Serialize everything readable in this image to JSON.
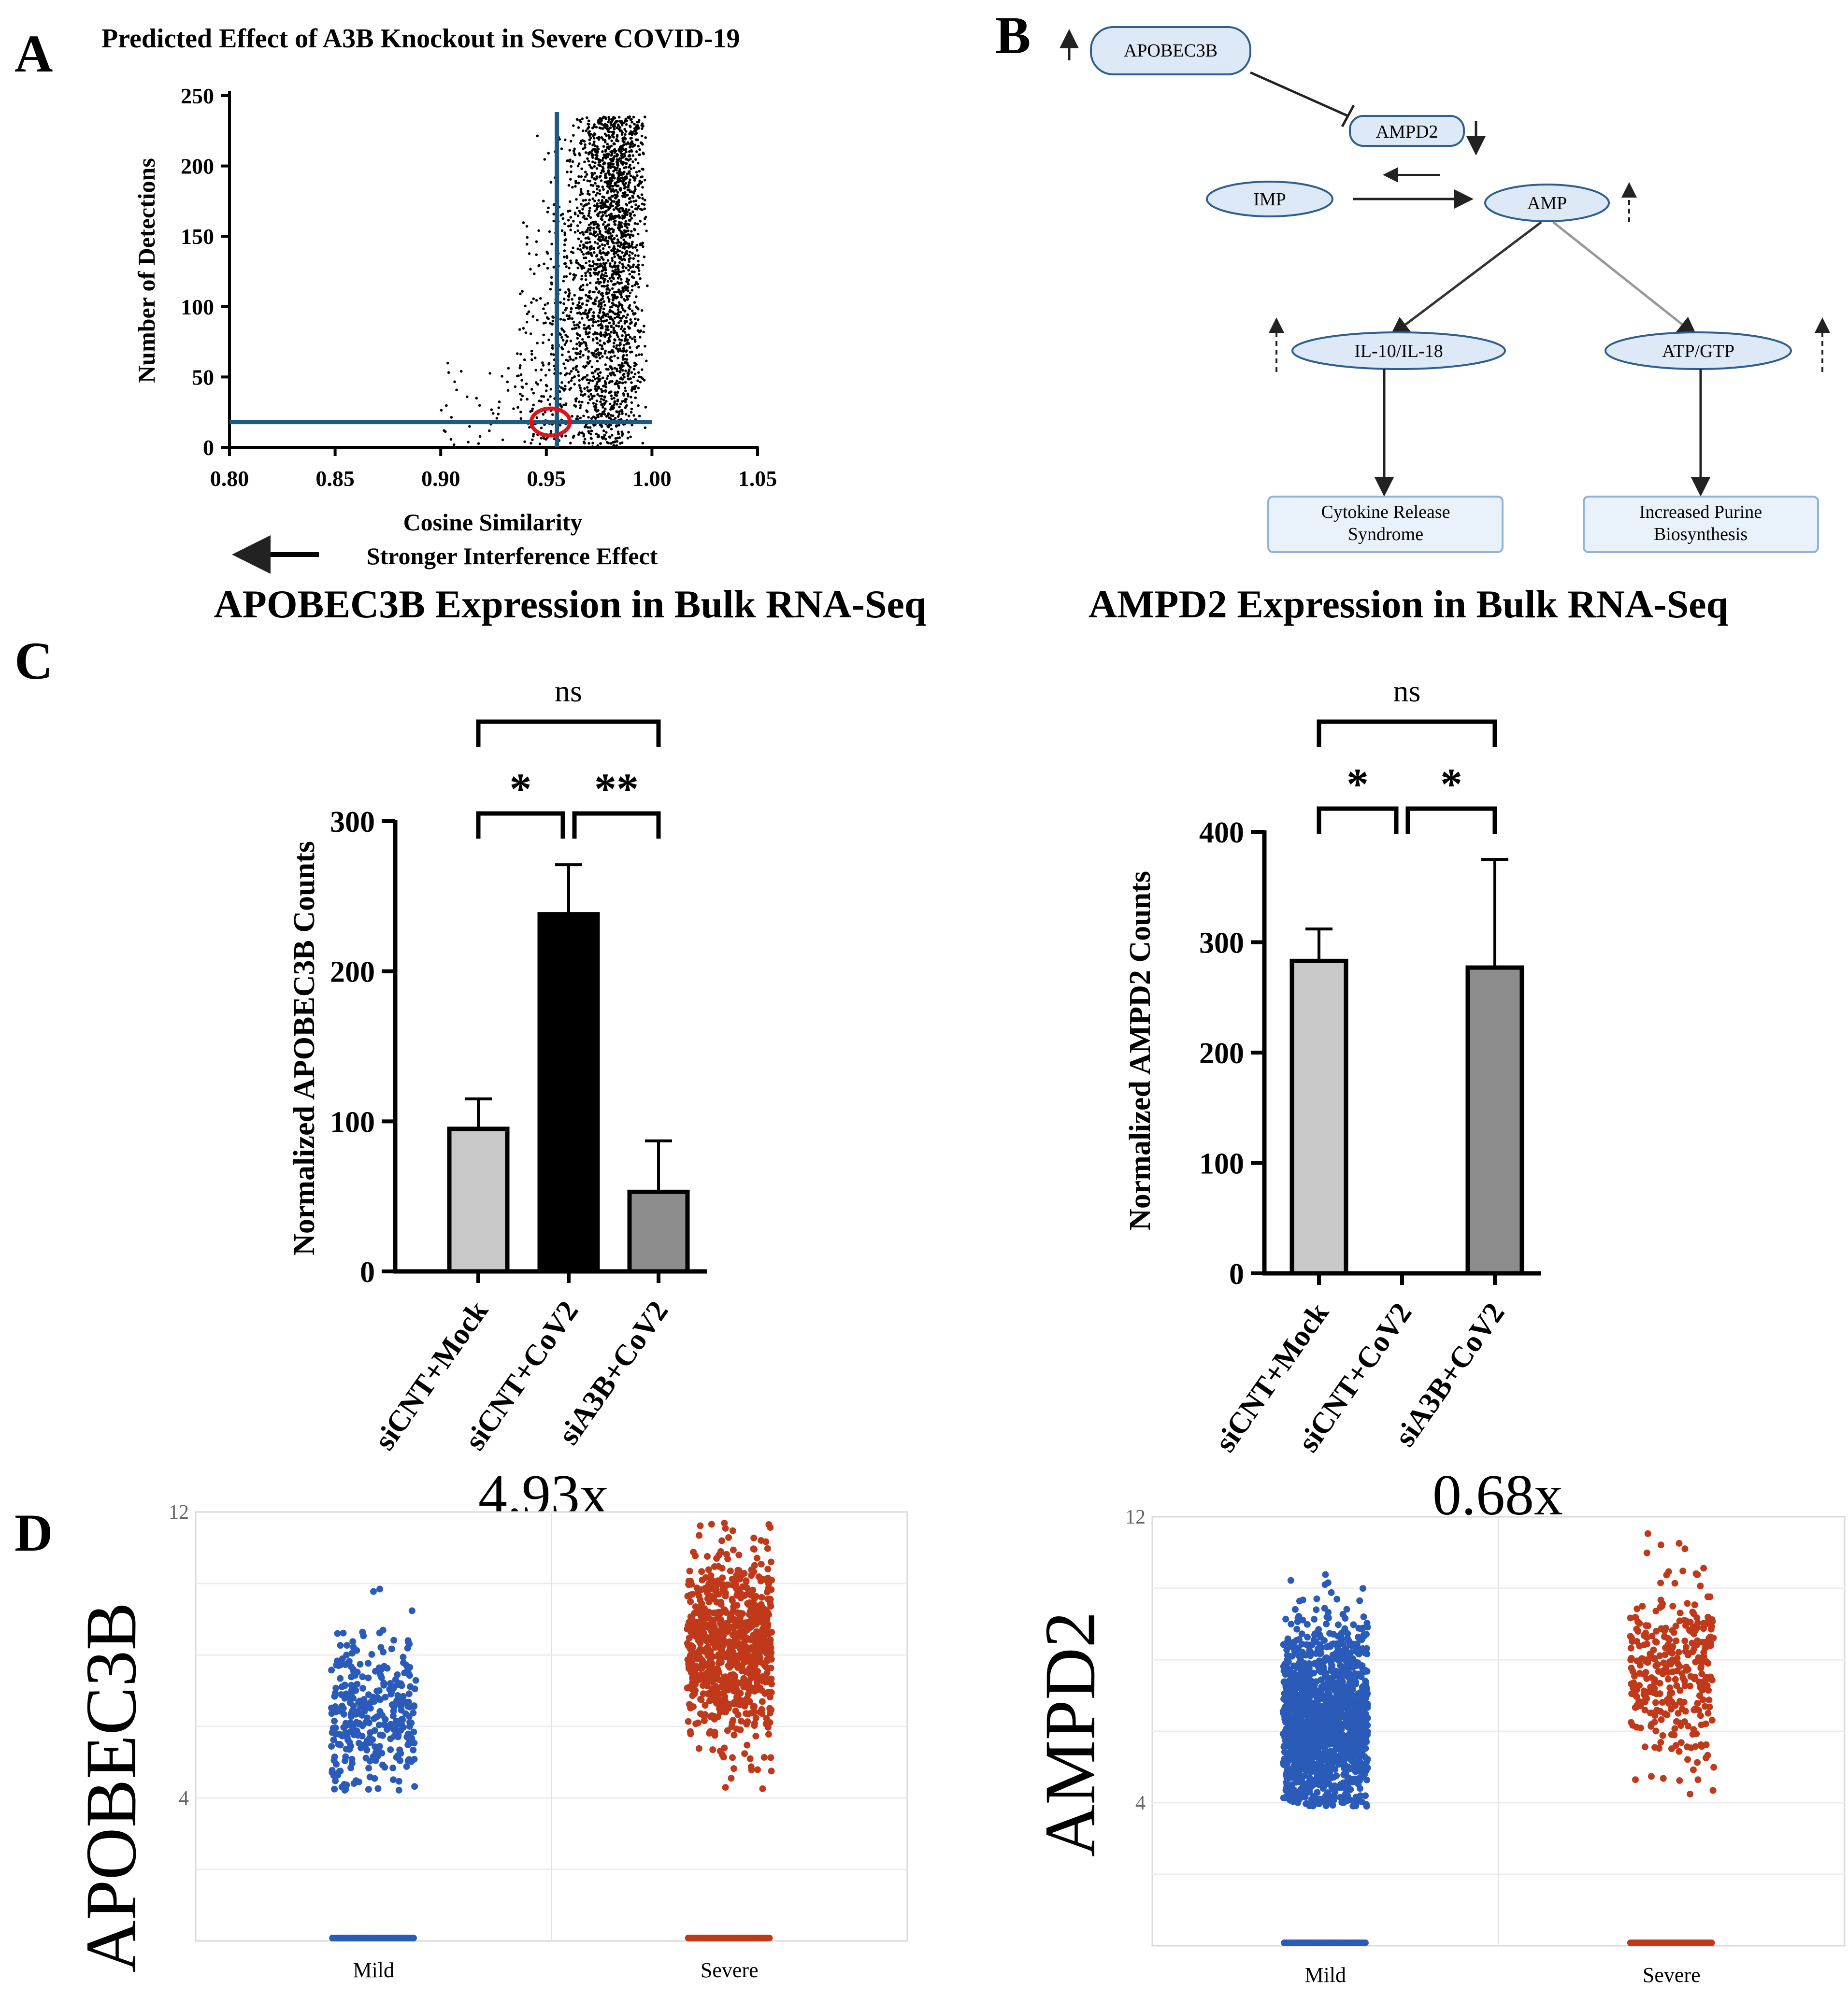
{
  "panels": {
    "A": {
      "letter": "A",
      "chart_data": {
        "type": "scatter",
        "title": "Predicted Effect of A3B Knockout in Severe COVID-19",
        "xlabel": "Cosine Similarity",
        "ylabel": "Number of Detections",
        "xlim": [
          0.8,
          1.05
        ],
        "ylim": [
          0,
          250
        ],
        "x_ticks": [
          "0.80",
          "0.85",
          "0.90",
          "0.95",
          "1.00",
          "1.05"
        ],
        "y_ticks": [
          "0",
          "50",
          "100",
          "150",
          "200",
          "250"
        ],
        "threshold_x": 0.955,
        "threshold_y": 18,
        "highlight_point": {
          "x": 0.952,
          "y": 18
        },
        "annotation": "Stronger Interference Effect",
        "series": [
          {
            "points": "dense cloud of ~2000 points, cosine similarity 0.94–1.00, detections 0–235, concentrated at 0.98–1.00"
          }
        ]
      }
    },
    "B": {
      "letter": "B",
      "nodes": {
        "apobec3b": "APOBEC3B",
        "ampd2": "AMPD2",
        "imp": "IMP",
        "amp": "AMP",
        "il": "IL-10/IL-18",
        "atp": "ATP/GTP",
        "crs_line1": "Cytokine Release",
        "crs_line2": "Syndrome",
        "purine_line1": "Increased Purine",
        "purine_line2": "Biosynthesis"
      }
    },
    "C": {
      "letter": "C",
      "chart_data": [
        {
          "type": "bar",
          "title": "APOBEC3B  Expression in Bulk RNA-Seq",
          "ylabel": "Normalized APOBEC3B Counts",
          "categories": [
            "siCNT+Mock",
            "siCNT+CoV2",
            "siA3B+CoV2"
          ],
          "values": [
            95,
            238,
            53
          ],
          "error_upper": [
            115,
            271,
            87
          ],
          "bar_colors": [
            "#c8c8c8",
            "#000000",
            "#8c8c8c"
          ],
          "ylim": [
            0,
            300
          ],
          "y_ticks": [
            "0",
            "100",
            "200",
            "300"
          ],
          "significance": [
            {
              "from": 0,
              "to": 2,
              "label": "ns"
            },
            {
              "from": 0,
              "to": 1,
              "label": "*"
            },
            {
              "from": 1,
              "to": 2,
              "label": "**"
            }
          ]
        },
        {
          "type": "bar",
          "title": "AMPD2 Expression in Bulk RNA-Seq",
          "ylabel": "Normalized AMPD2 Counts",
          "categories": [
            "siCNT+Mock",
            "siCNT+CoV2",
            "siA3B+CoV2"
          ],
          "values": [
            283,
            0,
            277
          ],
          "error_upper": [
            312,
            0,
            375
          ],
          "bar_colors": [
            "#c8c8c8",
            "#000000",
            "#8c8c8c"
          ],
          "ylim": [
            0,
            400
          ],
          "y_ticks": [
            "0",
            "100",
            "200",
            "300",
            "400"
          ],
          "significance": [
            {
              "from": 0,
              "to": 2,
              "label": "ns"
            },
            {
              "from": 0,
              "to": 1,
              "label": "*"
            },
            {
              "from": 1,
              "to": 2,
              "label": "*"
            }
          ]
        }
      ]
    },
    "D": {
      "letter": "D",
      "chart_data": [
        {
          "type": "scatter",
          "gene": "APOBEC3B",
          "fold_change": "4.93x",
          "categories": [
            "Mild",
            "Severe"
          ],
          "y_ticks": [
            "4",
            "12"
          ],
          "ylim": [
            0,
            12
          ],
          "colors": {
            "Mild": "#2b5bb8",
            "Severe": "#c0391b"
          },
          "series": [
            {
              "name": "Mild",
              "count": 320,
              "range": [
                4.2,
                11.2
              ],
              "median": 6.3
            },
            {
              "name": "Severe",
              "count": 820,
              "range": [
                3.7,
                11.7
              ],
              "median": 8.2
            }
          ]
        },
        {
          "type": "scatter",
          "gene": "AMPD2",
          "fold_change": "0.68x",
          "categories": [
            "Mild",
            "Severe"
          ],
          "y_ticks": [
            "4",
            "12"
          ],
          "ylim": [
            0,
            12
          ],
          "colors": {
            "Mild": "#2b5bb8",
            "Severe": "#c0391b"
          },
          "series": [
            {
              "name": "Mild",
              "count": 1500,
              "range": [
                3.9,
                11.4
              ],
              "median": 6.3
            },
            {
              "name": "Severe",
              "count": 330,
              "range": [
                4.1,
                11.6
              ],
              "median": 7.6
            }
          ]
        }
      ]
    }
  }
}
